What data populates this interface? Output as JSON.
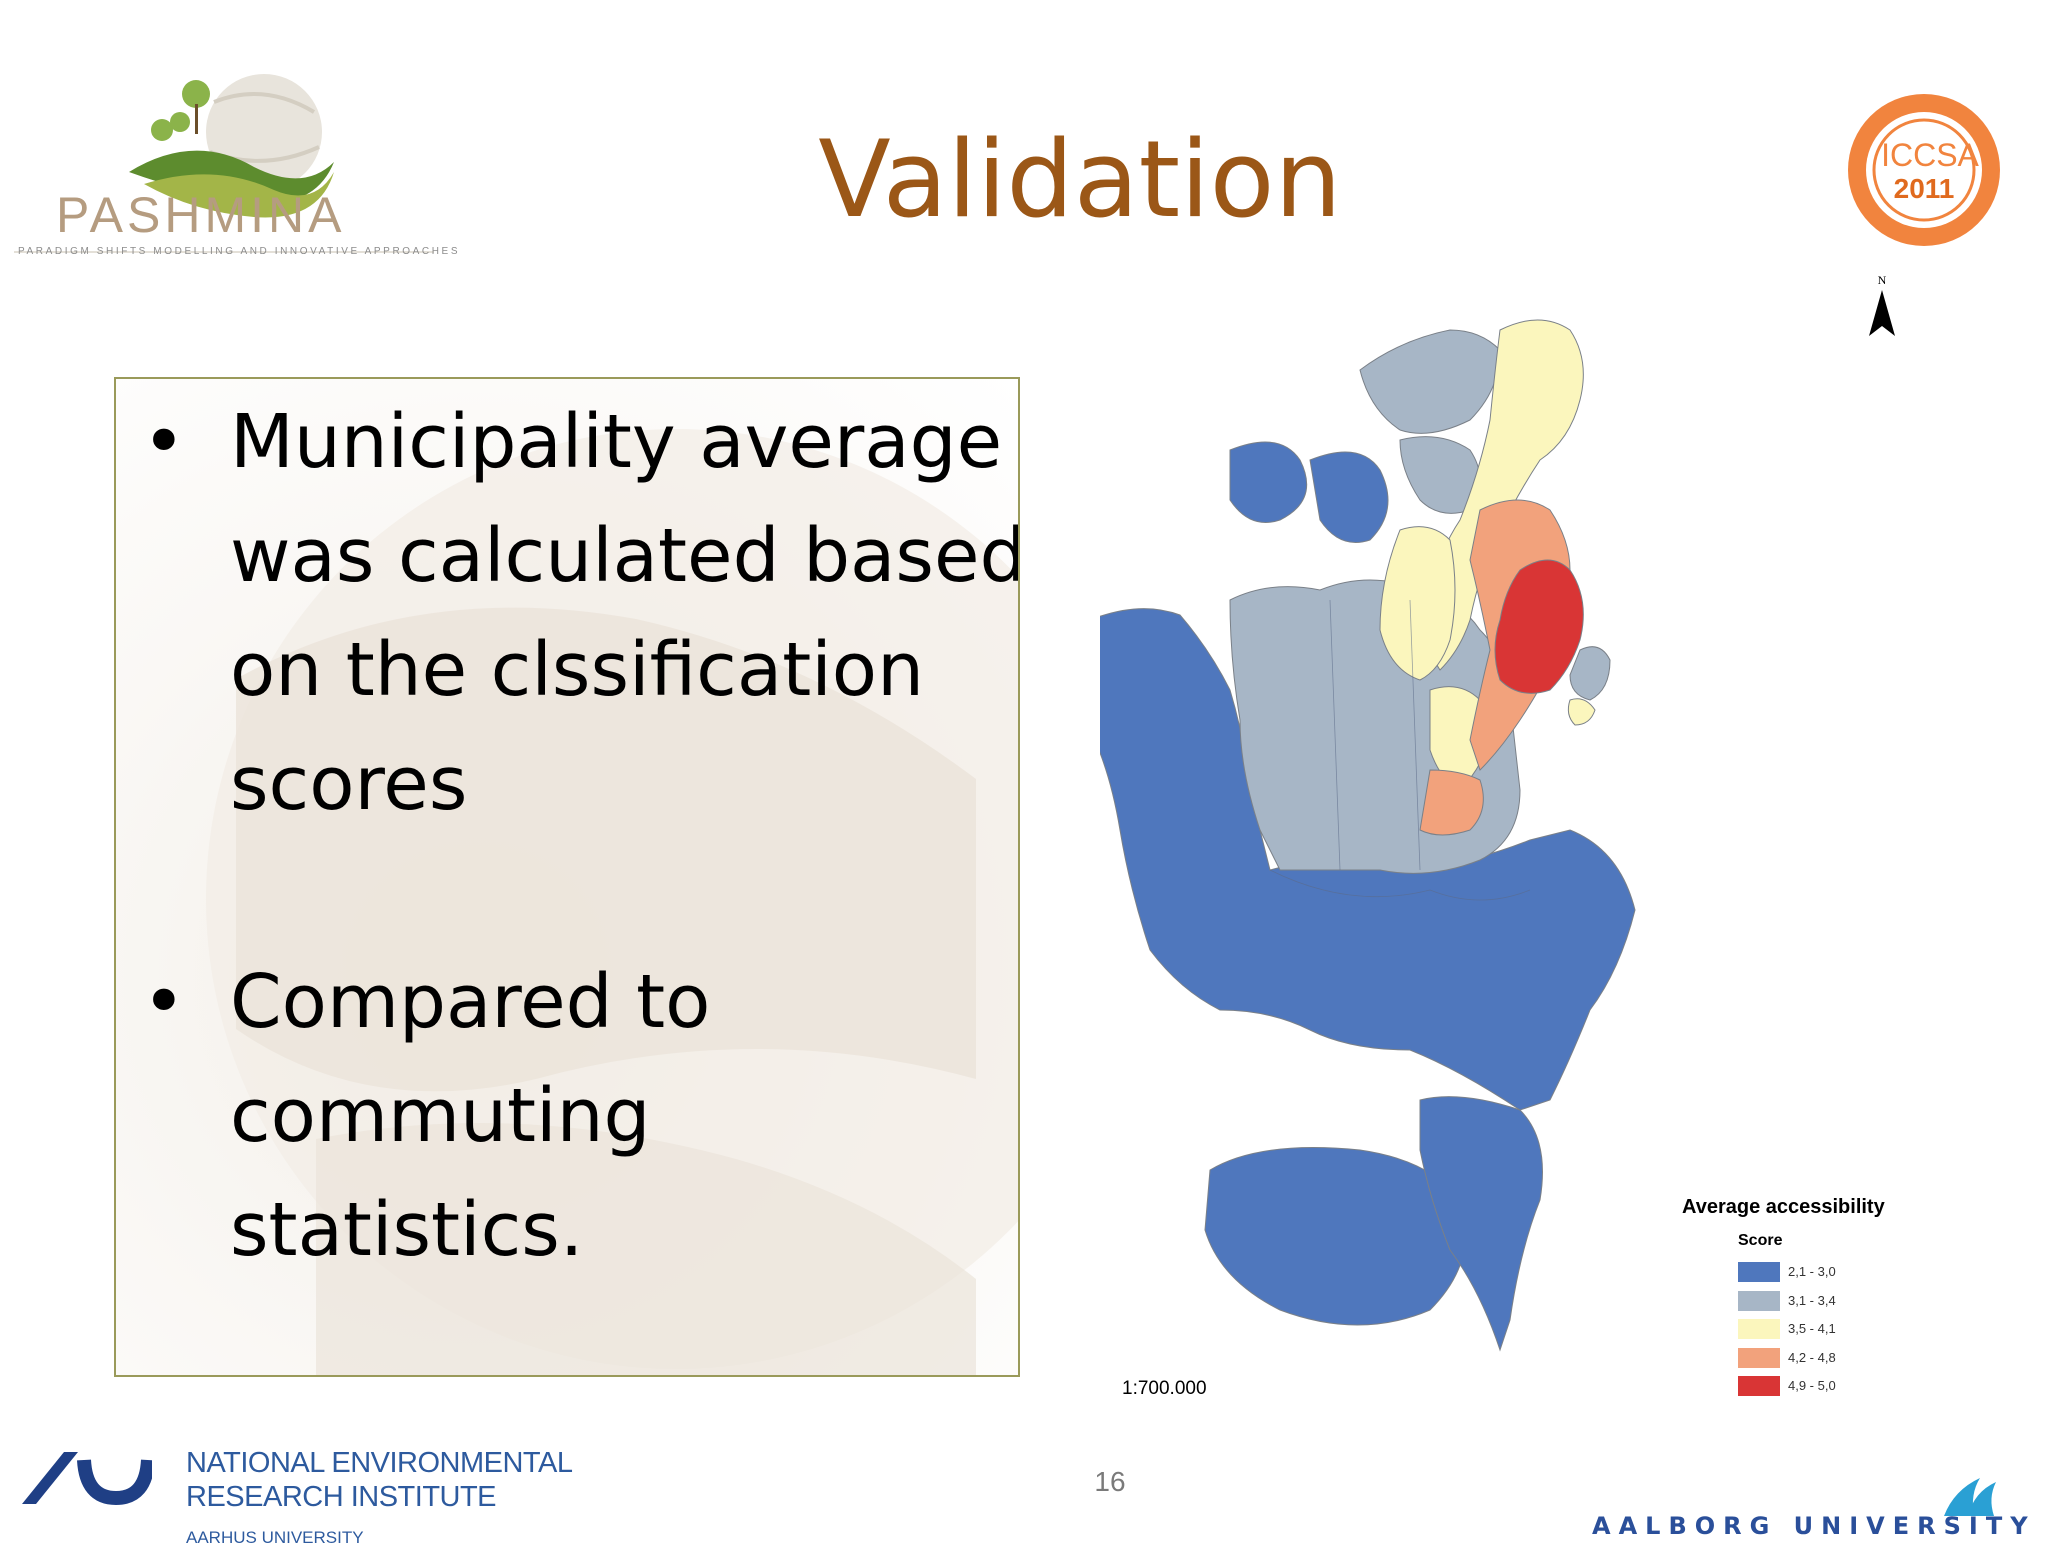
{
  "header": {
    "logo_word": "PASHMINA",
    "logo_tagline": "PARADIGM SHIFTS MODELLING AND INNOVATIVE APPROACHES",
    "title": "Validation",
    "badge": {
      "main": "ICCSA",
      "year": "2011"
    }
  },
  "content": {
    "bullets": [
      {
        "dot": "•",
        "lines": [
          "Municipality average",
          "was calculated based",
          "on the clssification",
          "scores"
        ]
      },
      {
        "dot": "•",
        "lines": [
          "Compared to",
          "commuting",
          "statistics."
        ]
      }
    ]
  },
  "map": {
    "north_label": "N",
    "scale": "1:700.000",
    "legend": {
      "title": "Average accessibility",
      "subtitle": "Score",
      "items": [
        {
          "label": "2,1 - 3,0",
          "color": "#4f77bd"
        },
        {
          "label": "3,1 - 3,4",
          "color": "#a7b6c6"
        },
        {
          "label": "3,5 - 4,1",
          "color": "#fbf6bd"
        },
        {
          "label": "4,2 - 4,8",
          "color": "#f2a27c"
        },
        {
          "label": "4,9 - 5,0",
          "color": "#d93535"
        }
      ]
    }
  },
  "footer": {
    "institute_line1": "NATIONAL ENVIRONMENTAL",
    "institute_line2": "RESEARCH INSTITUTE",
    "institute_sub": "AARHUS UNIVERSITY",
    "page_number": "16",
    "university": "AALBORG UNIVERSITY"
  }
}
